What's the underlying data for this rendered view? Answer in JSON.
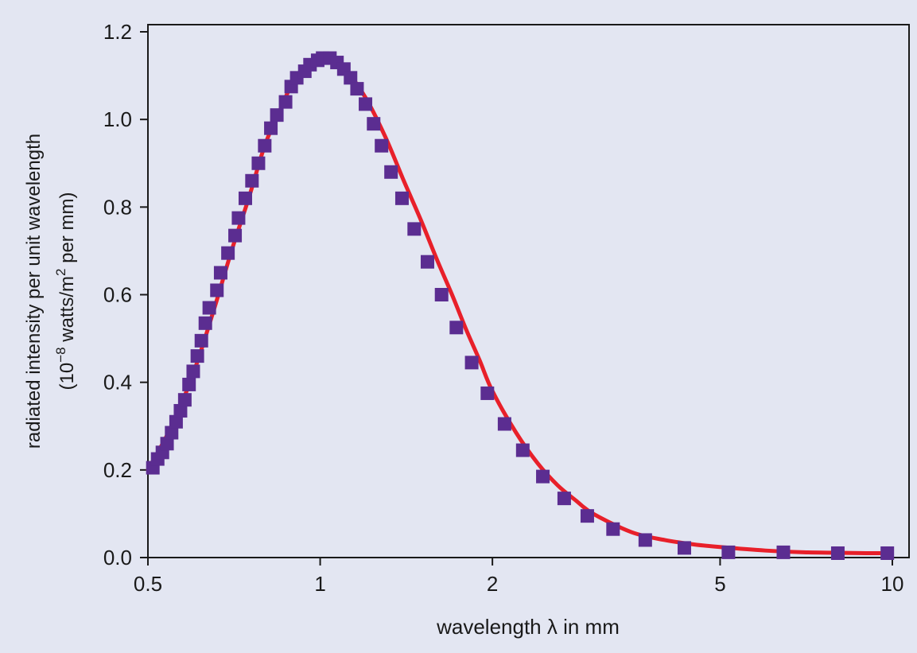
{
  "chart_data": {
    "type": "scatter",
    "xscale": "log",
    "xlim": [
      0.5,
      10
    ],
    "ylim": [
      0,
      1.2
    ],
    "grid": false,
    "legend": "none",
    "xlabel": "wavelength λ in mm",
    "ylabel_line1": "radiated intensity per unit wavelength",
    "ylabel_line2_prefix": "(10",
    "ylabel_line2_exp": "−8",
    "ylabel_line2_mid": " watts/m",
    "ylabel_line2_exp2": "2",
    "ylabel_line2_suffix": " per mm)",
    "xticks": [
      {
        "value": 0.5,
        "label": "0.5"
      },
      {
        "value": 1,
        "label": "1"
      },
      {
        "value": 2,
        "label": "2"
      },
      {
        "value": 5,
        "label": "5"
      },
      {
        "value": 10,
        "label": "10"
      }
    ],
    "yticks": [
      {
        "value": 0.0,
        "label": "0.0"
      },
      {
        "value": 0.2,
        "label": "0.2"
      },
      {
        "value": 0.4,
        "label": "0.4"
      },
      {
        "value": 0.6,
        "label": "0.6"
      },
      {
        "value": 0.8,
        "label": "0.8"
      },
      {
        "value": 1.0,
        "label": "1.0"
      },
      {
        "value": 1.2,
        "label": "1.2"
      }
    ],
    "series": [
      {
        "kind": "markers",
        "color": "#5b2d91",
        "marker": "square",
        "x": [
          0.51,
          0.52,
          0.53,
          0.54,
          0.55,
          0.56,
          0.57,
          0.58,
          0.59,
          0.6,
          0.61,
          0.62,
          0.63,
          0.64,
          0.66,
          0.67,
          0.69,
          0.71,
          0.72,
          0.74,
          0.76,
          0.78,
          0.8,
          0.82,
          0.84,
          0.87,
          0.89,
          0.91,
          0.94,
          0.96,
          0.99,
          1.01,
          1.04,
          1.07,
          1.1,
          1.13,
          1.16,
          1.2,
          1.24,
          1.28,
          1.33,
          1.39,
          1.46,
          1.54,
          1.63,
          1.73,
          1.84,
          1.96,
          2.1,
          2.26,
          2.45,
          2.67,
          2.93,
          3.25,
          3.7,
          4.33,
          5.17,
          6.45,
          8.03,
          9.8
        ],
        "y": [
          0.205,
          0.225,
          0.24,
          0.26,
          0.285,
          0.31,
          0.335,
          0.36,
          0.395,
          0.425,
          0.46,
          0.495,
          0.535,
          0.57,
          0.61,
          0.65,
          0.695,
          0.735,
          0.775,
          0.82,
          0.86,
          0.9,
          0.94,
          0.98,
          1.01,
          1.04,
          1.075,
          1.095,
          1.11,
          1.125,
          1.135,
          1.14,
          1.14,
          1.13,
          1.115,
          1.095,
          1.07,
          1.035,
          0.99,
          0.94,
          0.88,
          0.82,
          0.75,
          0.675,
          0.6,
          0.525,
          0.445,
          0.375,
          0.305,
          0.245,
          0.185,
          0.135,
          0.095,
          0.065,
          0.04,
          0.022,
          0.012,
          0.012,
          0.01,
          0.01
        ]
      },
      {
        "kind": "curve",
        "color": "#e8202a",
        "x": [
          0.5,
          0.55,
          0.6,
          0.65,
          0.7,
          0.75,
          0.8,
          0.85,
          0.9,
          0.95,
          1.0,
          1.05,
          1.1,
          1.2,
          1.3,
          1.4,
          1.5,
          1.6,
          1.7,
          1.8,
          1.9,
          2.0,
          2.2,
          2.4,
          2.6,
          2.8,
          3.0,
          3.5,
          4.0,
          4.5,
          5.0,
          6.0,
          7.0,
          8.0,
          9.0,
          9.8
        ],
        "y": [
          0.2,
          0.3,
          0.42,
          0.56,
          0.7,
          0.82,
          0.94,
          1.02,
          1.09,
          1.125,
          1.14,
          1.135,
          1.12,
          1.05,
          0.96,
          0.86,
          0.77,
          0.68,
          0.6,
          0.52,
          0.45,
          0.38,
          0.285,
          0.215,
          0.165,
          0.13,
          0.1,
          0.058,
          0.04,
          0.03,
          0.024,
          0.016,
          0.012,
          0.011,
          0.01,
          0.01
        ]
      }
    ]
  },
  "colors": {
    "background": "#e3e6f2",
    "axes": "#1a1a1a",
    "markers": "#5b2d91",
    "curve": "#e8202a"
  }
}
